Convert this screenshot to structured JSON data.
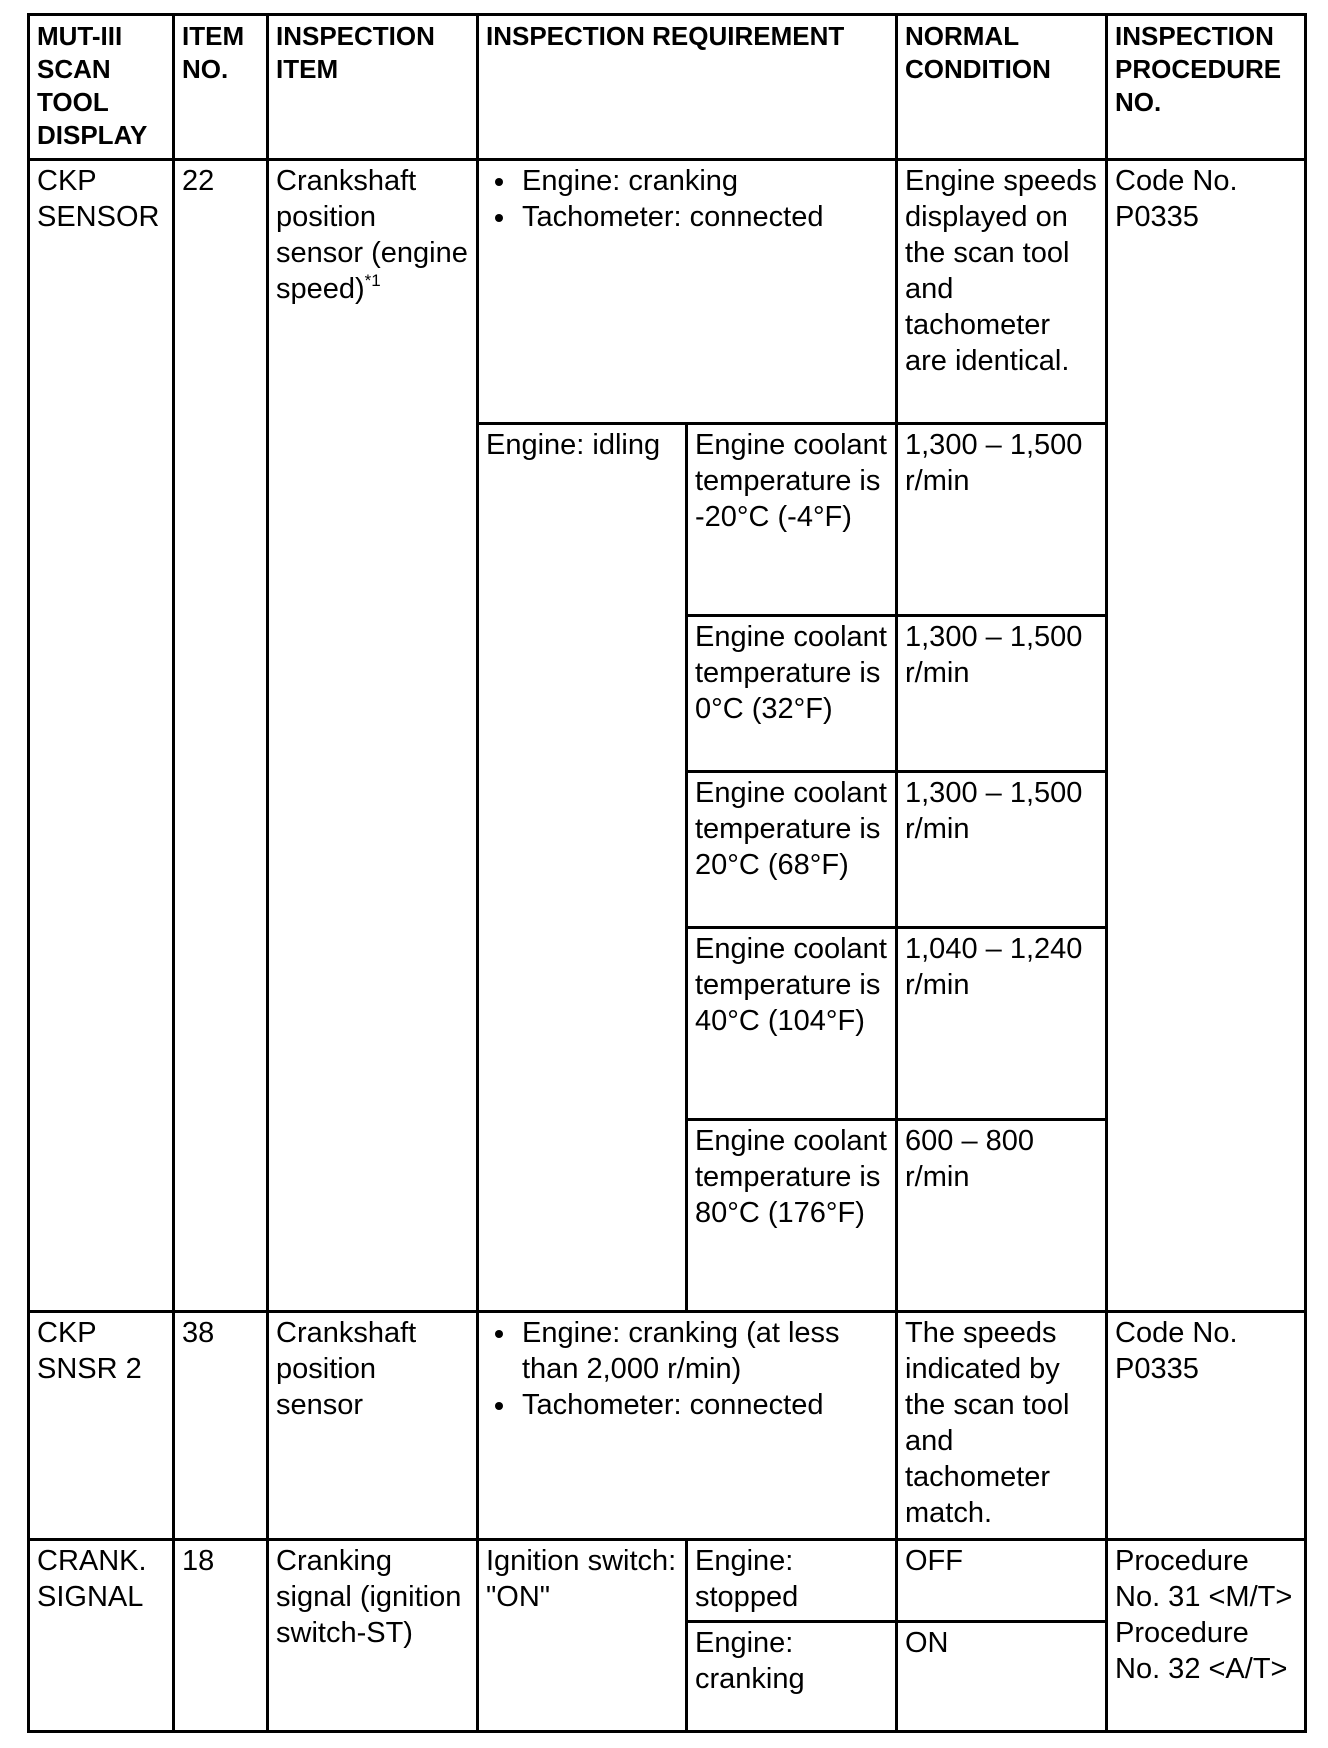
{
  "headers": {
    "display": "MUT-III SCAN TOOL DISPLAY",
    "item_no": "ITEM NO.",
    "inspection_item": "INSPECTION ITEM",
    "requirement": "INSPECTION REQUIREMENT",
    "normal": "NORMAL CONDITION",
    "procedure": "INSPECTION PROCEDURE NO."
  },
  "rows": [
    {
      "display": "CKP SENSOR",
      "item_no": "22",
      "inspection_item": "Crankshaft position sensor (engine speed)",
      "inspection_item_note": "*1",
      "procedure": "Code No. P0335",
      "cranking": {
        "requirements": [
          "Engine: cranking",
          "Tachometer: connected"
        ],
        "normal": "Engine speeds displayed on the scan tool and tachometer are identical."
      },
      "idling": {
        "condition": "Engine: idling",
        "sub": [
          {
            "condition": "Engine coolant temperature is -20°C (-4°F)",
            "normal": "1,300 – 1,500 r/min"
          },
          {
            "condition": "Engine coolant temperature is 0°C (32°F)",
            "normal": "1,300 – 1,500 r/min"
          },
          {
            "condition": "Engine coolant temperature is 20°C (68°F)",
            "normal": "1,300 – 1,500 r/min"
          },
          {
            "condition": "Engine coolant temperature is 40°C (104°F)",
            "normal": "1,040 – 1,240 r/min"
          },
          {
            "condition": "Engine coolant temperature is 80°C (176°F)",
            "normal": "600 – 800 r/min"
          }
        ]
      }
    },
    {
      "display": "CKP SNSR 2",
      "item_no": "38",
      "inspection_item": "Crankshaft position sensor",
      "requirements": [
        "Engine: cranking (at less than 2,000 r/min)",
        "Tachometer: connected"
      ],
      "normal": "The speeds indicated by the scan tool and tachometer match.",
      "procedure": "Code No. P0335"
    },
    {
      "display": "CRANK. SIGNAL",
      "item_no": "18",
      "inspection_item": "Cranking signal (ignition switch-ST)",
      "condition": "Ignition switch: \"ON\"",
      "sub": [
        {
          "condition": "Engine: stopped",
          "normal": "OFF"
        },
        {
          "condition": "Engine: cranking",
          "normal": "ON"
        }
      ],
      "procedure_1": "Procedure No. 31 <M/T>",
      "procedure_2": "Procedure No. 32 <A/T>"
    }
  ]
}
